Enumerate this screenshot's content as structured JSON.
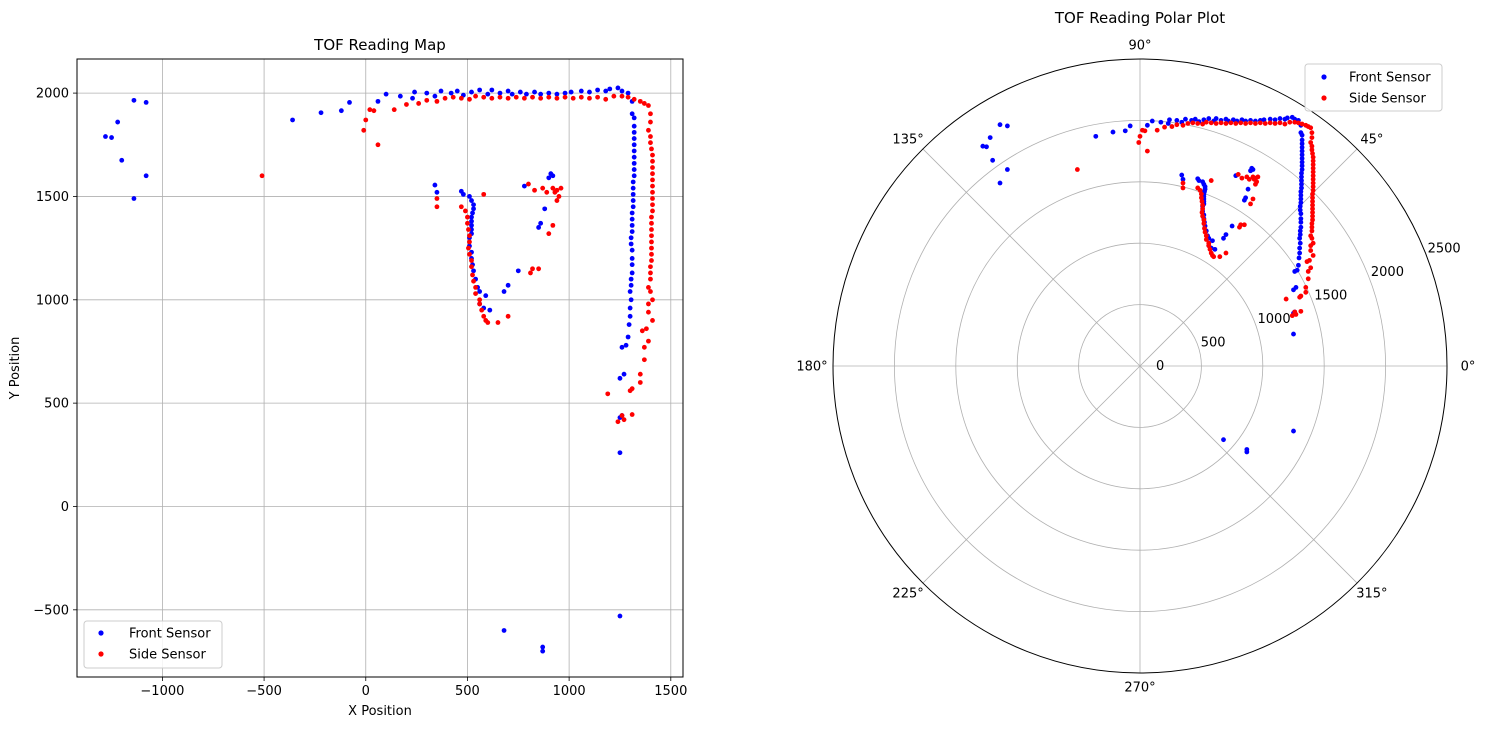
{
  "colors": {
    "front": "#0000ff",
    "side": "#ff0000",
    "grid": "#b0b0b0",
    "axis": "#000000",
    "legend_border": "#cccccc"
  },
  "chart_data": [
    {
      "type": "scatter",
      "title": "TOF Reading Map",
      "xlabel": "X Position",
      "ylabel": "Y Position",
      "xlim": [
        -1420,
        1560
      ],
      "ylim": [
        -825,
        2165
      ],
      "xticks": [
        -1000,
        -500,
        0,
        500,
        1000,
        1500
      ],
      "yticks": [
        -500,
        0,
        500,
        1000,
        1500,
        2000
      ],
      "xtick_labels": [
        "−1000",
        "−500",
        "0",
        "500",
        "1000",
        "1500"
      ],
      "ytick_labels": [
        "−500",
        "0",
        "500",
        "1000",
        "1500",
        "2000"
      ],
      "grid": true,
      "legend_position": "lower-left",
      "series": [
        {
          "name": "Front Sensor",
          "color": "#0000ff",
          "points": [
            [
              -1280,
              1790
            ],
            [
              -1250,
              1785
            ],
            [
              -1220,
              1860
            ],
            [
              -1200,
              1675
            ],
            [
              -1140,
              1965
            ],
            [
              -1140,
              1490
            ],
            [
              -1080,
              1955
            ],
            [
              -1080,
              1600
            ],
            [
              -360,
              1870
            ],
            [
              -220,
              1905
            ],
            [
              -120,
              1915
            ],
            [
              -80,
              1955
            ],
            [
              60,
              1960
            ],
            [
              100,
              1995
            ],
            [
              170,
              1985
            ],
            [
              230,
              1975
            ],
            [
              240,
              2005
            ],
            [
              300,
              2000
            ],
            [
              340,
              1985
            ],
            [
              370,
              2010
            ],
            [
              420,
              2000
            ],
            [
              450,
              2010
            ],
            [
              480,
              1990
            ],
            [
              520,
              2005
            ],
            [
              560,
              2015
            ],
            [
              600,
              1995
            ],
            [
              620,
              2015
            ],
            [
              660,
              2000
            ],
            [
              700,
              2010
            ],
            [
              720,
              1995
            ],
            [
              760,
              2005
            ],
            [
              790,
              1995
            ],
            [
              830,
              2005
            ],
            [
              860,
              1995
            ],
            [
              900,
              2000
            ],
            [
              940,
              1995
            ],
            [
              980,
              2000
            ],
            [
              1010,
              2005
            ],
            [
              1060,
              2010
            ],
            [
              1100,
              2005
            ],
            [
              1140,
              2015
            ],
            [
              1180,
              2010
            ],
            [
              1200,
              2020
            ],
            [
              1240,
              2025
            ],
            [
              1260,
              2010
            ],
            [
              1290,
              2000
            ],
            [
              1310,
              1960
            ],
            [
              1310,
              1900
            ],
            [
              1320,
              1880
            ],
            [
              1320,
              1840
            ],
            [
              1320,
              1810
            ],
            [
              1320,
              1780
            ],
            [
              1320,
              1750
            ],
            [
              1320,
              1720
            ],
            [
              1320,
              1690
            ],
            [
              1320,
              1660
            ],
            [
              1320,
              1630
            ],
            [
              1320,
              1600
            ],
            [
              1315,
              1570
            ],
            [
              1315,
              1540
            ],
            [
              1315,
              1510
            ],
            [
              1315,
              1480
            ],
            [
              1315,
              1450
            ],
            [
              1310,
              1420
            ],
            [
              1310,
              1390
            ],
            [
              1310,
              1360
            ],
            [
              1310,
              1330
            ],
            [
              1305,
              1300
            ],
            [
              1305,
              1270
            ],
            [
              1310,
              1240
            ],
            [
              1310,
              1200
            ],
            [
              1310,
              1170
            ],
            [
              1310,
              1130
            ],
            [
              1305,
              1100
            ],
            [
              1305,
              1070
            ],
            [
              1300,
              1040
            ],
            [
              1305,
              1000
            ],
            [
              1300,
              960
            ],
            [
              1300,
              920
            ],
            [
              1295,
              880
            ],
            [
              1290,
              820
            ],
            [
              1280,
              780
            ],
            [
              1260,
              770
            ],
            [
              1270,
              640
            ],
            [
              1250,
              620
            ],
            [
              1260,
              440
            ],
            [
              1250,
              430
            ],
            [
              1250,
              260
            ],
            [
              1250,
              -530
            ],
            [
              340,
              1555
            ],
            [
              350,
              1520
            ],
            [
              470,
              1525
            ],
            [
              480,
              1510
            ],
            [
              510,
              1500
            ],
            [
              520,
              1480
            ],
            [
              530,
              1460
            ],
            [
              530,
              1440
            ],
            [
              525,
              1420
            ],
            [
              520,
              1400
            ],
            [
              520,
              1380
            ],
            [
              520,
              1360
            ],
            [
              520,
              1340
            ],
            [
              520,
              1320
            ],
            [
              510,
              1300
            ],
            [
              510,
              1260
            ],
            [
              520,
              1230
            ],
            [
              520,
              1200
            ],
            [
              525,
              1170
            ],
            [
              530,
              1140
            ],
            [
              540,
              1100
            ],
            [
              550,
              1060
            ],
            [
              560,
              1040
            ],
            [
              590,
              1020
            ],
            [
              560,
              980
            ],
            [
              580,
              960
            ],
            [
              610,
              950
            ],
            [
              680,
              1040
            ],
            [
              700,
              1070
            ],
            [
              750,
              1140
            ],
            [
              780,
              1550
            ],
            [
              850,
              1350
            ],
            [
              860,
              1370
            ],
            [
              880,
              1440
            ],
            [
              900,
              1590
            ],
            [
              910,
              1610
            ],
            [
              920,
              1600
            ],
            [
              680,
              -600
            ],
            [
              870,
              -680
            ],
            [
              870,
              -700
            ]
          ]
        },
        {
          "name": "Side Sensor",
          "color": "#ff0000",
          "points": [
            [
              -510,
              1600
            ],
            [
              -10,
              1820
            ],
            [
              0,
              1870
            ],
            [
              20,
              1920
            ],
            [
              40,
              1915
            ],
            [
              60,
              1750
            ],
            [
              140,
              1920
            ],
            [
              200,
              1945
            ],
            [
              260,
              1950
            ],
            [
              300,
              1965
            ],
            [
              350,
              1960
            ],
            [
              390,
              1975
            ],
            [
              430,
              1980
            ],
            [
              470,
              1975
            ],
            [
              510,
              1970
            ],
            [
              540,
              1985
            ],
            [
              580,
              1980
            ],
            [
              620,
              1975
            ],
            [
              660,
              1980
            ],
            [
              700,
              1975
            ],
            [
              740,
              1980
            ],
            [
              780,
              1975
            ],
            [
              820,
              1980
            ],
            [
              860,
              1975
            ],
            [
              900,
              1980
            ],
            [
              940,
              1975
            ],
            [
              980,
              1980
            ],
            [
              1020,
              1975
            ],
            [
              1060,
              1980
            ],
            [
              1100,
              1975
            ],
            [
              1140,
              1980
            ],
            [
              1180,
              1970
            ],
            [
              1220,
              1985
            ],
            [
              1260,
              1985
            ],
            [
              1290,
              1980
            ],
            [
              1320,
              1970
            ],
            [
              1350,
              1960
            ],
            [
              1370,
              1950
            ],
            [
              1390,
              1940
            ],
            [
              1400,
              1900
            ],
            [
              1400,
              1860
            ],
            [
              1390,
              1820
            ],
            [
              1400,
              1790
            ],
            [
              1400,
              1760
            ],
            [
              1405,
              1730
            ],
            [
              1410,
              1700
            ],
            [
              1410,
              1670
            ],
            [
              1410,
              1640
            ],
            [
              1410,
              1610
            ],
            [
              1410,
              1580
            ],
            [
              1410,
              1550
            ],
            [
              1410,
              1520
            ],
            [
              1410,
              1490
            ],
            [
              1410,
              1460
            ],
            [
              1410,
              1430
            ],
            [
              1405,
              1400
            ],
            [
              1405,
              1370
            ],
            [
              1405,
              1340
            ],
            [
              1405,
              1310
            ],
            [
              1405,
              1280
            ],
            [
              1405,
              1250
            ],
            [
              1405,
              1220
            ],
            [
              1405,
              1190
            ],
            [
              1400,
              1160
            ],
            [
              1400,
              1130
            ],
            [
              1400,
              1100
            ],
            [
              1390,
              1060
            ],
            [
              1400,
              1040
            ],
            [
              1410,
              1000
            ],
            [
              1390,
              980
            ],
            [
              1390,
              940
            ],
            [
              1410,
              900
            ],
            [
              1380,
              860
            ],
            [
              1360,
              850
            ],
            [
              1390,
              800
            ],
            [
              1370,
              770
            ],
            [
              1370,
              710
            ],
            [
              1350,
              640
            ],
            [
              1350,
              600
            ],
            [
              1310,
              570
            ],
            [
              1300,
              560
            ],
            [
              1310,
              445
            ],
            [
              1260,
              440
            ],
            [
              1270,
              420
            ],
            [
              1240,
              410
            ],
            [
              1190,
              545
            ],
            [
              350,
              1490
            ],
            [
              350,
              1450
            ],
            [
              470,
              1450
            ],
            [
              490,
              1430
            ],
            [
              500,
              1400
            ],
            [
              500,
              1370
            ],
            [
              505,
              1340
            ],
            [
              510,
              1310
            ],
            [
              510,
              1280
            ],
            [
              505,
              1250
            ],
            [
              510,
              1220
            ],
            [
              520,
              1190
            ],
            [
              520,
              1160
            ],
            [
              525,
              1120
            ],
            [
              530,
              1090
            ],
            [
              540,
              1060
            ],
            [
              540,
              1030
            ],
            [
              560,
              1000
            ],
            [
              560,
              980
            ],
            [
              570,
              950
            ],
            [
              580,
              920
            ],
            [
              600,
              890
            ],
            [
              590,
              900
            ],
            [
              650,
              890
            ],
            [
              700,
              920
            ],
            [
              580,
              1510
            ],
            [
              800,
              1560
            ],
            [
              810,
              1130
            ],
            [
              820,
              1150
            ],
            [
              850,
              1150
            ],
            [
              830,
              1530
            ],
            [
              870,
              1540
            ],
            [
              890,
              1520
            ],
            [
              900,
              1320
            ],
            [
              920,
              1360
            ],
            [
              920,
              1540
            ],
            [
              930,
              1520
            ],
            [
              940,
              1530
            ],
            [
              940,
              1480
            ],
            [
              950,
              1500
            ],
            [
              960,
              1540
            ]
          ]
        }
      ]
    },
    {
      "type": "polar-scatter",
      "title": "TOF Reading Polar Plot",
      "rmax": 2500,
      "radial_ticks": [
        0,
        500,
        1000,
        1500,
        2000,
        2500
      ],
      "radial_tick_labels": [
        "0",
        "500",
        "1000",
        "1500",
        "2000",
        "2500"
      ],
      "angle_ticks": [
        0,
        45,
        90,
        135,
        180,
        225,
        270,
        315
      ],
      "angle_tick_labels": [
        "0°",
        "45°",
        "90°",
        "135°",
        "180°",
        "225°",
        "270°",
        "315°"
      ],
      "grid": true,
      "legend_position": "upper-right",
      "legend": [
        {
          "name": "Front Sensor",
          "color": "#0000ff"
        },
        {
          "name": "Side Sensor",
          "color": "#ff0000"
        }
      ]
    }
  ]
}
